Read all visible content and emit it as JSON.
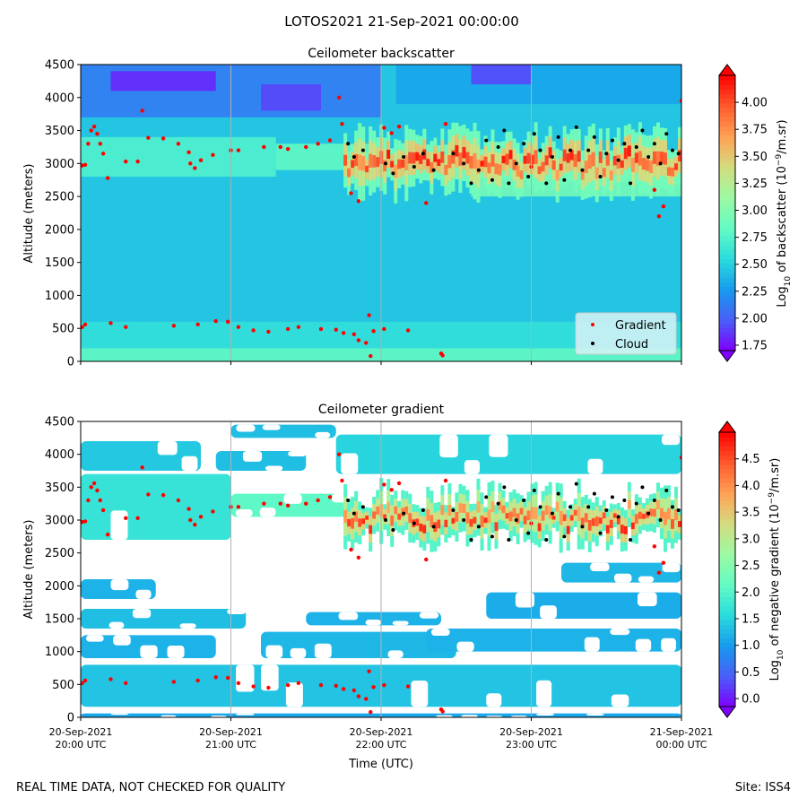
{
  "figure": {
    "suptitle": "LOTOS2021 21-Sep-2021 00:00:00",
    "footer_left": "REAL TIME DATA, NOT CHECKED FOR QUALITY",
    "footer_right": "Site: ISS4",
    "xlabel": "Time (UTC)"
  },
  "colors": {
    "gradient_points": "#ff0000",
    "cloud_points": "#000000",
    "legend_bg": "#d8f2f6",
    "colormap": [
      "#7f00ff",
      "#4a5ef8",
      "#169bee",
      "#2adcdc",
      "#62fbc4",
      "#9cfaa3",
      "#d4dc7f",
      "#ffa256",
      "#ff5a2d",
      "#ff0000"
    ]
  },
  "chart_data": [
    {
      "type": "heatmap",
      "title": "Ceilometer backscatter",
      "ylabel": "Altitude (meters)",
      "ylim": [
        0,
        4500
      ],
      "yticks": [
        "0",
        "500",
        "1000",
        "1500",
        "2000",
        "2500",
        "3000",
        "3500",
        "4000",
        "4500"
      ],
      "xlim_hours": [
        20,
        24
      ],
      "xticks": [
        {
          "line1": "20-Sep-2021",
          "line2": "20:00 UTC"
        },
        {
          "line1": "20-Sep-2021",
          "line2": "21:00 UTC"
        },
        {
          "line1": "20-Sep-2021",
          "line2": "22:00 UTC"
        },
        {
          "line1": "20-Sep-2021",
          "line2": "23:00 UTC"
        },
        {
          "line1": "21-Sep-2021",
          "line2": "00:00 UTC"
        }
      ],
      "colorbar": {
        "label_parts": [
          "Log",
          "10",
          " of backscatter (10",
          "−9",
          "/m.sr)"
        ],
        "vmin": 1.7,
        "vmax": 4.25,
        "ticks": [
          "1.75",
          "2.00",
          "2.25",
          "2.50",
          "2.75",
          "3.00",
          "3.25",
          "3.50",
          "3.75",
          "4.00"
        ],
        "tick_values": [
          1.75,
          2.0,
          2.25,
          2.5,
          2.75,
          3.0,
          3.25,
          3.5,
          3.75,
          4.0
        ]
      },
      "legend": {
        "placement": "lower-right",
        "entries": [
          "Gradient",
          "Cloud"
        ]
      },
      "field": {
        "base_value": 2.45,
        "layers": [
          {
            "t0": 20.0,
            "t1": 24.0,
            "z0": 0,
            "z1": 200,
            "value": 2.85
          },
          {
            "t0": 20.0,
            "t1": 24.0,
            "z0": 200,
            "z1": 600,
            "value": 2.6
          },
          {
            "t0": 20.0,
            "t1": 21.3,
            "z0": 2800,
            "z1": 3400,
            "value": 2.75
          },
          {
            "t0": 21.3,
            "t1": 22.0,
            "z0": 2900,
            "z1": 3300,
            "value": 2.85
          },
          {
            "t0": 22.6,
            "t1": 24.0,
            "z0": 2500,
            "z1": 2900,
            "value": 2.95
          },
          {
            "t0": 20.0,
            "t1": 22.0,
            "z0": 3700,
            "z1": 4500,
            "value": 2.1
          },
          {
            "t0": 20.2,
            "t1": 20.9,
            "z0": 4100,
            "z1": 4400,
            "value": 1.8
          },
          {
            "t0": 21.2,
            "t1": 21.6,
            "z0": 3800,
            "z1": 4200,
            "value": 1.9
          },
          {
            "t0": 22.1,
            "t1": 24.0,
            "z0": 3900,
            "z1": 4500,
            "value": 2.3
          },
          {
            "t0": 22.6,
            "t1": 23.0,
            "z0": 4200,
            "z1": 4500,
            "value": 1.9
          }
        ],
        "cloud_base_m": 2600,
        "cloud_top_m": 3650,
        "cloud_start_hour": 21.75
      },
      "gradient_points": [
        [
          20.01,
          520
        ],
        [
          20.03,
          560
        ],
        [
          20.2,
          580
        ],
        [
          20.3,
          520
        ],
        [
          20.62,
          540
        ],
        [
          20.78,
          560
        ],
        [
          20.9,
          610
        ],
        [
          20.98,
          600
        ],
        [
          21.05,
          520
        ],
        [
          21.15,
          470
        ],
        [
          21.25,
          450
        ],
        [
          21.38,
          490
        ],
        [
          21.45,
          520
        ],
        [
          21.6,
          490
        ],
        [
          21.7,
          480
        ],
        [
          21.75,
          430
        ],
        [
          21.82,
          410
        ],
        [
          21.85,
          320
        ],
        [
          21.9,
          280
        ],
        [
          21.92,
          700
        ],
        [
          21.95,
          460
        ],
        [
          22.02,
          490
        ],
        [
          22.18,
          470
        ],
        [
          22.4,
          120
        ],
        [
          22.41,
          90
        ],
        [
          21.93,
          80
        ],
        [
          20.01,
          2970
        ],
        [
          20.03,
          2980
        ],
        [
          20.05,
          3300
        ],
        [
          20.07,
          3500
        ],
        [
          20.09,
          3560
        ],
        [
          20.11,
          3450
        ],
        [
          20.13,
          3300
        ],
        [
          20.15,
          3150
        ],
        [
          20.18,
          2780
        ],
        [
          20.3,
          3030
        ],
        [
          20.38,
          3030
        ],
        [
          20.41,
          3800
        ],
        [
          20.45,
          3390
        ],
        [
          20.55,
          3380
        ],
        [
          20.65,
          3300
        ],
        [
          20.72,
          3170
        ],
        [
          20.73,
          3000
        ],
        [
          20.76,
          2930
        ],
        [
          20.8,
          3050
        ],
        [
          20.88,
          3130
        ],
        [
          21.0,
          3200
        ],
        [
          21.05,
          3200
        ],
        [
          21.22,
          3250
        ],
        [
          21.33,
          3250
        ],
        [
          21.38,
          3220
        ],
        [
          21.5,
          3250
        ],
        [
          21.58,
          3300
        ],
        [
          21.66,
          3350
        ],
        [
          21.72,
          4000
        ],
        [
          21.74,
          3600
        ],
        [
          21.8,
          2550
        ],
        [
          21.85,
          2430
        ],
        [
          22.02,
          3540
        ],
        [
          22.07,
          3460
        ],
        [
          22.12,
          3560
        ],
        [
          22.3,
          2400
        ],
        [
          22.43,
          3600
        ],
        [
          23.0,
          2950
        ],
        [
          23.82,
          2600
        ],
        [
          23.85,
          2200
        ],
        [
          23.88,
          2350
        ],
        [
          24.0,
          3950
        ]
      ],
      "cloud_points": [
        [
          21.78,
          3300
        ],
        [
          21.82,
          3100
        ],
        [
          21.88,
          3200
        ],
        [
          22.03,
          3000
        ],
        [
          22.08,
          2850
        ],
        [
          22.15,
          3100
        ],
        [
          22.22,
          2950
        ],
        [
          22.28,
          3150
        ],
        [
          22.35,
          2900
        ],
        [
          22.48,
          3150
        ],
        [
          22.55,
          3000
        ],
        [
          22.6,
          2700
        ],
        [
          22.65,
          2900
        ],
        [
          22.7,
          3350
        ],
        [
          22.74,
          2750
        ],
        [
          22.78,
          3250
        ],
        [
          22.82,
          3500
        ],
        [
          22.85,
          2700
        ],
        [
          22.9,
          3000
        ],
        [
          22.95,
          3300
        ],
        [
          22.98,
          2800
        ],
        [
          23.02,
          3450
        ],
        [
          23.06,
          3200
        ],
        [
          23.1,
          2700
        ],
        [
          23.14,
          3100
        ],
        [
          23.18,
          3400
        ],
        [
          23.22,
          2750
        ],
        [
          23.26,
          3200
        ],
        [
          23.3,
          3550
        ],
        [
          23.34,
          2900
        ],
        [
          23.38,
          3200
        ],
        [
          23.42,
          3400
        ],
        [
          23.46,
          2800
        ],
        [
          23.5,
          3150
        ],
        [
          23.54,
          3350
        ],
        [
          23.58,
          3050
        ],
        [
          23.62,
          3300
        ],
        [
          23.66,
          2700
        ],
        [
          23.7,
          3250
        ],
        [
          23.74,
          3500
        ],
        [
          23.78,
          3100
        ],
        [
          23.82,
          3300
        ],
        [
          23.86,
          3000
        ],
        [
          23.9,
          3450
        ],
        [
          23.94,
          3200
        ],
        [
          23.98,
          3150
        ]
      ]
    },
    {
      "type": "heatmap",
      "title": "Ceilometer gradient",
      "ylabel": "Altitude (meters)",
      "ylim": [
        0,
        4500
      ],
      "yticks": [
        "0",
        "500",
        "1000",
        "1500",
        "2000",
        "2500",
        "3000",
        "3500",
        "4000",
        "4500"
      ],
      "xlim_hours": [
        20,
        24
      ],
      "xticks": [
        {
          "line1": "20-Sep-2021",
          "line2": "20:00 UTC"
        },
        {
          "line1": "20-Sep-2021",
          "line2": "21:00 UTC"
        },
        {
          "line1": "20-Sep-2021",
          "line2": "22:00 UTC"
        },
        {
          "line1": "20-Sep-2021",
          "line2": "23:00 UTC"
        },
        {
          "line1": "21-Sep-2021",
          "line2": "00:00 UTC"
        }
      ],
      "colorbar": {
        "label_parts": [
          "Log",
          "10",
          " of negative gradient (10",
          "−9",
          "/m.sr)"
        ],
        "vmin": -0.15,
        "vmax": 5.0,
        "ticks": [
          "0.0",
          "0.5",
          "1.0",
          "1.5",
          "2.0",
          "2.5",
          "3.0",
          "3.5",
          "4.0",
          "4.5"
        ],
        "tick_values": [
          0.0,
          0.5,
          1.0,
          1.5,
          2.0,
          2.5,
          3.0,
          3.5,
          4.0,
          4.5
        ]
      },
      "field": {
        "bands": [
          {
            "t0": 20.0,
            "t1": 24.0,
            "z0": 0,
            "z1": 60,
            "value": 1.1
          },
          {
            "t0": 20.0,
            "t1": 24.0,
            "z0": 160,
            "z1": 800,
            "value": 1.35
          },
          {
            "t0": 20.0,
            "t1": 20.9,
            "z0": 900,
            "z1": 1250,
            "value": 1.2
          },
          {
            "t0": 21.2,
            "t1": 22.5,
            "z0": 900,
            "z1": 1300,
            "value": 1.25
          },
          {
            "t0": 22.3,
            "t1": 24.0,
            "z0": 1000,
            "z1": 1350,
            "value": 1.2
          },
          {
            "t0": 20.0,
            "t1": 21.1,
            "z0": 1350,
            "z1": 1650,
            "value": 1.3
          },
          {
            "t0": 21.5,
            "t1": 22.4,
            "z0": 1400,
            "z1": 1600,
            "value": 1.2
          },
          {
            "t0": 22.7,
            "t1": 24.0,
            "z0": 1500,
            "z1": 1900,
            "value": 1.15
          },
          {
            "t0": 20.0,
            "t1": 20.5,
            "z0": 1800,
            "z1": 2100,
            "value": 1.2
          },
          {
            "t0": 23.2,
            "t1": 24.0,
            "z0": 2050,
            "z1": 2350,
            "value": 1.25
          },
          {
            "t0": 20.0,
            "t1": 21.0,
            "z0": 2700,
            "z1": 3700,
            "value": 1.7
          },
          {
            "t0": 21.0,
            "t1": 21.8,
            "z0": 3050,
            "z1": 3400,
            "value": 2.1
          },
          {
            "t0": 20.0,
            "t1": 20.8,
            "z0": 3750,
            "z1": 4200,
            "value": 1.4
          },
          {
            "t0": 20.9,
            "t1": 21.5,
            "z0": 3750,
            "z1": 4050,
            "value": 1.3
          },
          {
            "t0": 21.7,
            "t1": 24.0,
            "z0": 3700,
            "z1": 4300,
            "value": 1.5
          },
          {
            "t0": 21.0,
            "t1": 21.7,
            "z0": 4250,
            "z1": 4450,
            "value": 1.3
          }
        ],
        "cloud_base_m": 2700,
        "cloud_top_m": 3650,
        "cloud_start_hour": 21.75
      },
      "gradient_points": [
        [
          20.01,
          520
        ],
        [
          20.03,
          560
        ],
        [
          20.2,
          580
        ],
        [
          20.3,
          520
        ],
        [
          20.62,
          540
        ],
        [
          20.78,
          560
        ],
        [
          20.9,
          610
        ],
        [
          20.98,
          600
        ],
        [
          21.05,
          520
        ],
        [
          21.15,
          470
        ],
        [
          21.25,
          450
        ],
        [
          21.38,
          490
        ],
        [
          21.45,
          520
        ],
        [
          21.6,
          490
        ],
        [
          21.7,
          480
        ],
        [
          21.75,
          430
        ],
        [
          21.82,
          410
        ],
        [
          21.85,
          320
        ],
        [
          21.9,
          280
        ],
        [
          21.92,
          700
        ],
        [
          21.95,
          460
        ],
        [
          22.02,
          490
        ],
        [
          22.18,
          470
        ],
        [
          22.4,
          120
        ],
        [
          22.41,
          90
        ],
        [
          21.93,
          80
        ],
        [
          20.01,
          2970
        ],
        [
          20.03,
          2980
        ],
        [
          20.05,
          3300
        ],
        [
          20.07,
          3500
        ],
        [
          20.09,
          3560
        ],
        [
          20.11,
          3450
        ],
        [
          20.13,
          3300
        ],
        [
          20.15,
          3150
        ],
        [
          20.18,
          2780
        ],
        [
          20.3,
          3030
        ],
        [
          20.38,
          3030
        ],
        [
          20.41,
          3800
        ],
        [
          20.45,
          3390
        ],
        [
          20.55,
          3380
        ],
        [
          20.65,
          3300
        ],
        [
          20.72,
          3170
        ],
        [
          20.73,
          3000
        ],
        [
          20.76,
          2930
        ],
        [
          20.8,
          3050
        ],
        [
          20.88,
          3130
        ],
        [
          21.0,
          3200
        ],
        [
          21.05,
          3200
        ],
        [
          21.22,
          3250
        ],
        [
          21.33,
          3250
        ],
        [
          21.38,
          3220
        ],
        [
          21.5,
          3250
        ],
        [
          21.58,
          3300
        ],
        [
          21.66,
          3350
        ],
        [
          21.72,
          4000
        ],
        [
          21.74,
          3600
        ],
        [
          21.8,
          2550
        ],
        [
          21.85,
          2430
        ],
        [
          22.02,
          3540
        ],
        [
          22.07,
          3460
        ],
        [
          22.12,
          3560
        ],
        [
          22.3,
          2400
        ],
        [
          22.43,
          3600
        ],
        [
          23.0,
          2950
        ],
        [
          23.82,
          2600
        ],
        [
          23.85,
          2200
        ],
        [
          23.88,
          2350
        ],
        [
          24.0,
          3950
        ]
      ],
      "cloud_points": [
        [
          21.78,
          3300
        ],
        [
          21.82,
          3100
        ],
        [
          21.88,
          3200
        ],
        [
          22.03,
          3000
        ],
        [
          22.08,
          2850
        ],
        [
          22.15,
          3100
        ],
        [
          22.22,
          2950
        ],
        [
          22.28,
          3150
        ],
        [
          22.35,
          2900
        ],
        [
          22.48,
          3150
        ],
        [
          22.55,
          3000
        ],
        [
          22.6,
          2700
        ],
        [
          22.65,
          2900
        ],
        [
          22.7,
          3350
        ],
        [
          22.74,
          2750
        ],
        [
          22.78,
          3250
        ],
        [
          22.82,
          3500
        ],
        [
          22.85,
          2700
        ],
        [
          22.9,
          3000
        ],
        [
          22.95,
          3300
        ],
        [
          22.98,
          2800
        ],
        [
          23.02,
          3450
        ],
        [
          23.06,
          3200
        ],
        [
          23.1,
          2700
        ],
        [
          23.14,
          3100
        ],
        [
          23.18,
          3400
        ],
        [
          23.22,
          2750
        ],
        [
          23.26,
          3200
        ],
        [
          23.3,
          3550
        ],
        [
          23.34,
          2900
        ],
        [
          23.38,
          3200
        ],
        [
          23.42,
          3400
        ],
        [
          23.46,
          2800
        ],
        [
          23.5,
          3150
        ],
        [
          23.54,
          3350
        ],
        [
          23.58,
          3050
        ],
        [
          23.62,
          3300
        ],
        [
          23.66,
          2700
        ],
        [
          23.7,
          3250
        ],
        [
          23.74,
          3500
        ],
        [
          23.78,
          3100
        ],
        [
          23.82,
          3300
        ],
        [
          23.86,
          3000
        ],
        [
          23.9,
          3450
        ],
        [
          23.94,
          3200
        ],
        [
          23.98,
          3150
        ]
      ]
    }
  ]
}
